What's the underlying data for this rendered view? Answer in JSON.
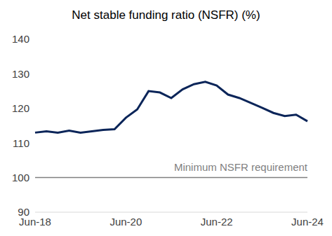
{
  "chart_data": {
    "type": "line",
    "title": "Net stable funding ratio (NSFR) (%)",
    "categories": [
      "Jun-18",
      null,
      null,
      null,
      null,
      null,
      null,
      null,
      "Jun-20",
      null,
      null,
      null,
      null,
      null,
      null,
      null,
      "Jun-22",
      null,
      null,
      null,
      null,
      null,
      null,
      null,
      "Jun-24"
    ],
    "values": [
      113,
      113.4,
      113,
      113.6,
      113,
      113.4,
      113.8,
      114,
      117.3,
      119.7,
      125,
      124.6,
      123,
      125.5,
      127,
      127.7,
      126.6,
      124,
      123,
      121.6,
      120.2,
      118.7,
      117.8,
      118.2,
      116.3
    ],
    "color": "#0b2559",
    "ylim": [
      90,
      140
    ],
    "yticks": [
      90,
      100,
      110,
      120,
      130,
      140
    ],
    "grid": false,
    "annotations": [
      {
        "text": "Minimum NSFR requirement",
        "y": 100,
        "color": "#7f7f7f"
      }
    ]
  }
}
